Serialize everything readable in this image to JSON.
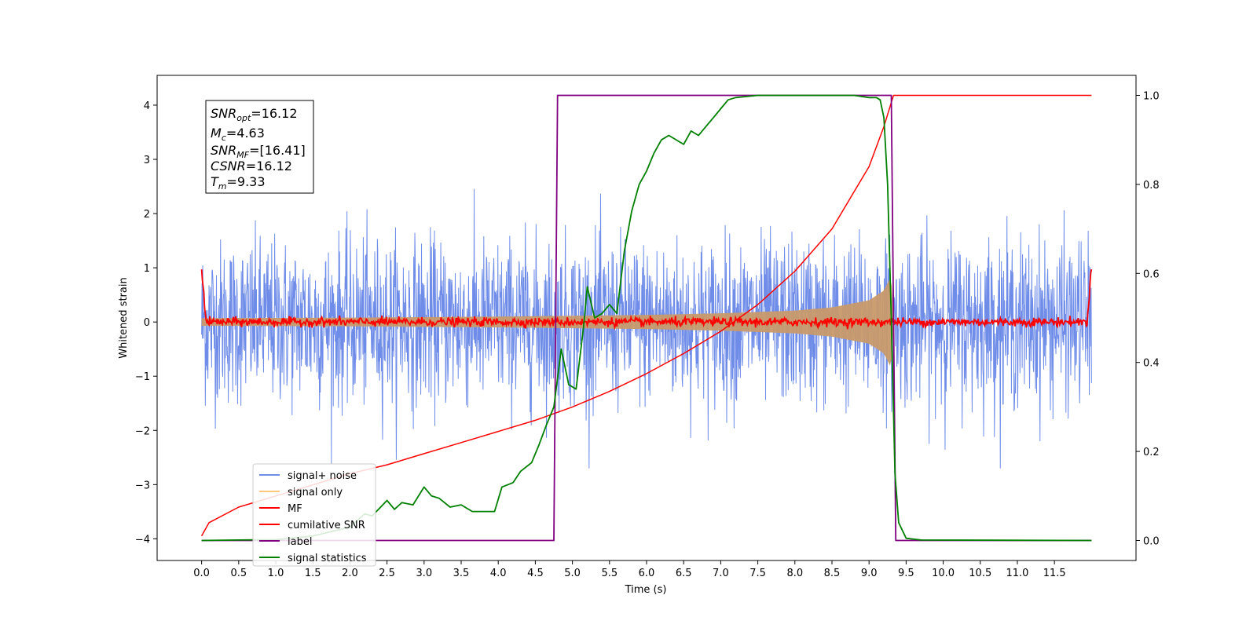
{
  "chart_data": {
    "type": "line",
    "title": "",
    "xlabel": "Time (s)",
    "ylabel": "Whitened strain",
    "y2label": "",
    "xlim": [
      -0.6,
      12.6
    ],
    "ylim": [
      -4.4,
      4.55
    ],
    "y2lim": [
      -0.045,
      1.045
    ],
    "xticks": [
      "0.0",
      "0.5",
      "1.0",
      "1.5",
      "2.0",
      "2.5",
      "3.0",
      "3.5",
      "4.0",
      "4.5",
      "5.0",
      "5.5",
      "6.0",
      "6.5",
      "7.0",
      "7.5",
      "8.0",
      "8.5",
      "9.0",
      "9.5",
      "10.0",
      "10.5",
      "11.0",
      "11.5"
    ],
    "yticks": [
      "4",
      "3",
      "2",
      "1",
      "0",
      "−1",
      "−2",
      "−3",
      "−4"
    ],
    "y2ticks": [
      "1.0",
      "0.8",
      "0.6",
      "0.4",
      "0.2",
      "0.0"
    ],
    "grid": false,
    "legend_position": "lower-left",
    "annotation": {
      "snr_opt_base": "SNR",
      "snr_opt_sub": "opt",
      "snr_opt_value": "=16.12",
      "mc_base": "M",
      "mc_sub": "c",
      "mc_value": "=4.63",
      "snr_mf_base": "SNR",
      "snr_mf_sub": "MF",
      "snr_mf_value": "=[16.41]",
      "csnr_base": "CSNR",
      "csnr_value": "=16.12",
      "tm_base": "T",
      "tm_sub": "m",
      "tm_value": "=9.33"
    },
    "series": [
      {
        "name": "signal+ noise",
        "color": "#6f8de8",
        "axis": "left",
        "kind": "noise",
        "amplitude": 1.8,
        "t_start": 0.0,
        "t_end": 12.0
      },
      {
        "name": "signal only",
        "color": "#c89a6a",
        "axis": "left",
        "kind": "chirp_envelope",
        "t_start": 0.0,
        "t_end": 9.33,
        "envelope_x": [
          0.0,
          2.0,
          4.0,
          6.0,
          7.0,
          8.0,
          8.5,
          9.0,
          9.2,
          9.3,
          9.33
        ],
        "envelope_y": [
          0.07,
          0.08,
          0.1,
          0.13,
          0.16,
          0.21,
          0.27,
          0.4,
          0.58,
          0.85,
          0.0
        ]
      },
      {
        "name": "MF",
        "color": "#ff0000",
        "axis": "left",
        "kind": "mf",
        "t_start": 0.0,
        "t_end": 12.0,
        "edge_values": [
          1.0,
          1.0
        ]
      },
      {
        "name": "cumilative SNR",
        "color": "#ff0000",
        "axis": "right",
        "x": [
          0.0,
          0.1,
          0.5,
          1.0,
          1.5,
          2.0,
          2.5,
          3.0,
          3.5,
          4.0,
          4.5,
          5.0,
          5.5,
          6.0,
          6.5,
          7.0,
          7.5,
          8.0,
          8.5,
          9.0,
          9.2,
          9.33,
          12.0
        ],
        "y": [
          0.01,
          0.04,
          0.075,
          0.1,
          0.125,
          0.15,
          0.17,
          0.195,
          0.22,
          0.245,
          0.27,
          0.3,
          0.335,
          0.375,
          0.42,
          0.47,
          0.53,
          0.605,
          0.7,
          0.84,
          0.93,
          1.0,
          1.0
        ]
      },
      {
        "name": "label",
        "color": "#800080",
        "axis": "right",
        "x": [
          0.0,
          4.75,
          4.8,
          9.3,
          9.36,
          12.0
        ],
        "y": [
          0.0,
          0.0,
          1.0,
          1.0,
          0.0,
          0.0
        ]
      },
      {
        "name": "signal statistics",
        "color": "#008000",
        "axis": "right",
        "x": [
          0.0,
          0.5,
          1.0,
          1.5,
          2.0,
          2.2,
          2.3,
          2.5,
          2.6,
          2.7,
          2.85,
          3.0,
          3.1,
          3.2,
          3.35,
          3.5,
          3.65,
          3.8,
          3.95,
          4.05,
          4.2,
          4.3,
          4.45,
          4.55,
          4.65,
          4.75,
          4.85,
          4.95,
          5.05,
          5.15,
          5.2,
          5.3,
          5.4,
          5.5,
          5.6,
          5.7,
          5.8,
          5.9,
          6.0,
          6.1,
          6.2,
          6.3,
          6.5,
          6.6,
          6.7,
          6.8,
          6.9,
          7.0,
          7.1,
          7.2,
          7.5,
          8.0,
          8.5,
          8.8,
          9.0,
          9.1,
          9.15,
          9.2,
          9.25,
          9.3,
          9.35,
          9.4,
          9.5,
          9.7,
          12.0
        ],
        "y": [
          0.0,
          0.001,
          0.002,
          0.01,
          0.03,
          0.06,
          0.055,
          0.09,
          0.07,
          0.085,
          0.08,
          0.12,
          0.1,
          0.095,
          0.075,
          0.08,
          0.065,
          0.065,
          0.065,
          0.12,
          0.13,
          0.155,
          0.175,
          0.215,
          0.26,
          0.3,
          0.43,
          0.35,
          0.34,
          0.48,
          0.57,
          0.5,
          0.51,
          0.53,
          0.51,
          0.65,
          0.74,
          0.8,
          0.83,
          0.87,
          0.9,
          0.91,
          0.89,
          0.92,
          0.91,
          0.93,
          0.95,
          0.97,
          0.99,
          0.995,
          1.0,
          1.0,
          1.0,
          1.0,
          0.995,
          0.995,
          0.99,
          0.95,
          0.8,
          0.5,
          0.15,
          0.04,
          0.005,
          0.001,
          0.0
        ]
      }
    ]
  }
}
